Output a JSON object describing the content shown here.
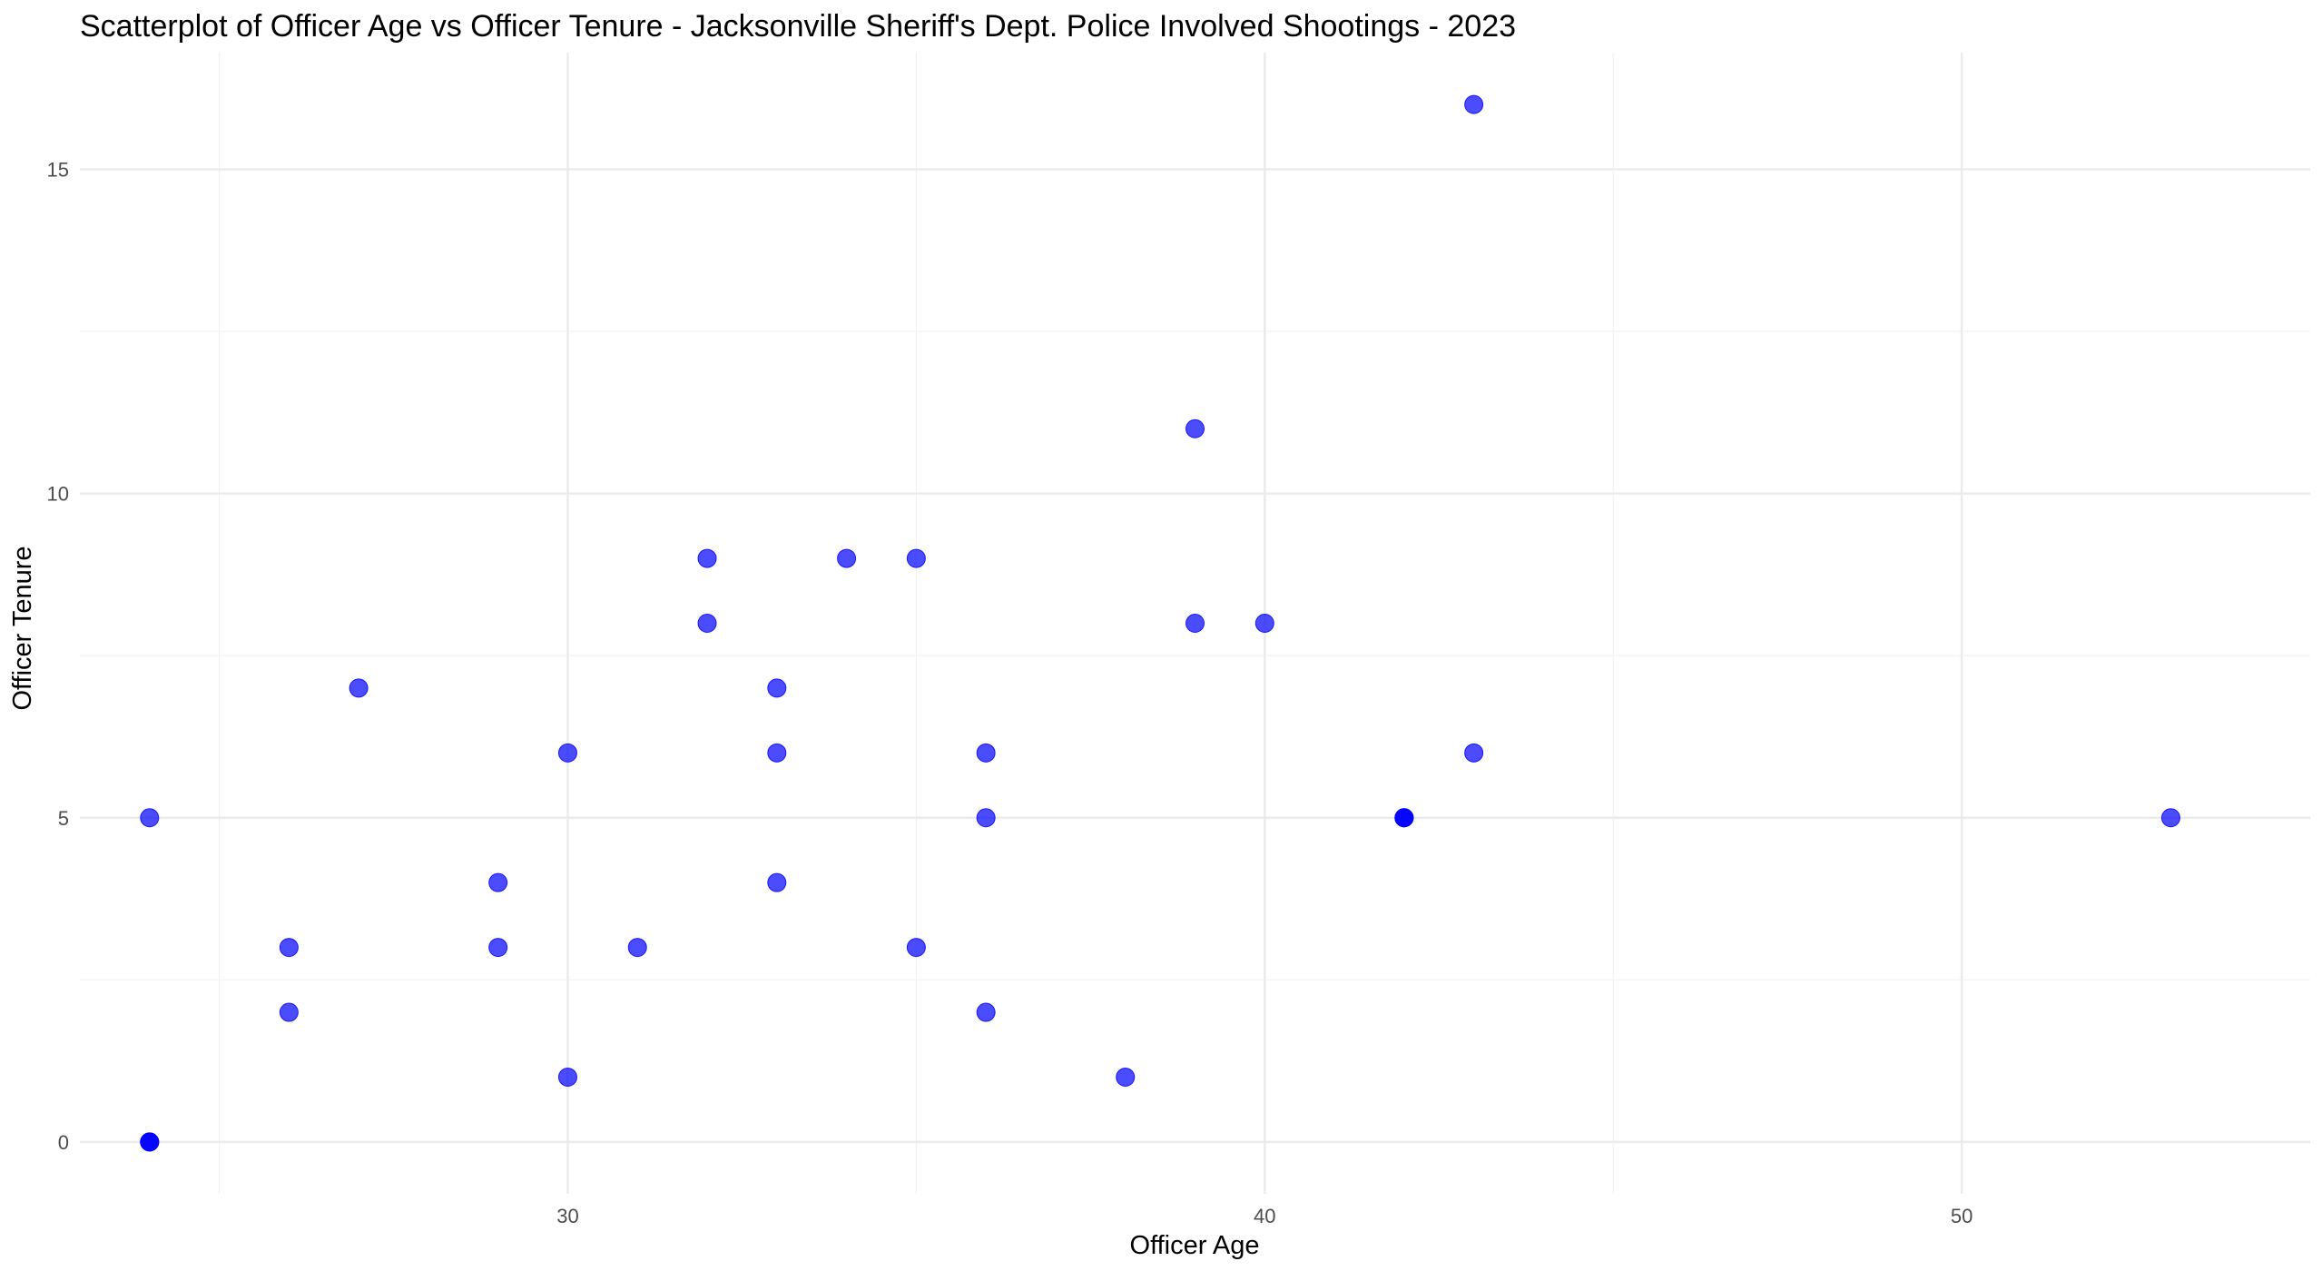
{
  "chart_data": {
    "type": "scatter",
    "title": "Scatterplot of Officer Age vs Officer Tenure - Jacksonville Sheriff's Dept. Police Involved Shootings - 2023",
    "xlabel": "Officer Age",
    "ylabel": "Officer Tenure",
    "xlim": [
      23,
      55
    ],
    "ylim": [
      -0.8,
      16.8
    ],
    "x_ticks": [
      30,
      40,
      50
    ],
    "y_ticks": [
      0,
      5,
      10,
      15
    ],
    "x_minor_ticks": [
      25,
      35,
      45
    ],
    "y_minor_ticks": [
      2.5,
      7.5,
      12.5
    ],
    "grid": true,
    "legend": "none",
    "point_color": "#0000ff",
    "point_opacity": 0.7,
    "points": [
      {
        "x": 24,
        "y": 0
      },
      {
        "x": 24,
        "y": 0
      },
      {
        "x": 24,
        "y": 0
      },
      {
        "x": 24,
        "y": 5
      },
      {
        "x": 26,
        "y": 3
      },
      {
        "x": 26,
        "y": 2
      },
      {
        "x": 27,
        "y": 7
      },
      {
        "x": 29,
        "y": 4
      },
      {
        "x": 29,
        "y": 3
      },
      {
        "x": 30,
        "y": 6
      },
      {
        "x": 30,
        "y": 1
      },
      {
        "x": 31,
        "y": 3
      },
      {
        "x": 32,
        "y": 9
      },
      {
        "x": 32,
        "y": 8
      },
      {
        "x": 33,
        "y": 7
      },
      {
        "x": 33,
        "y": 6
      },
      {
        "x": 33,
        "y": 4
      },
      {
        "x": 34,
        "y": 9
      },
      {
        "x": 35,
        "y": 9
      },
      {
        "x": 35,
        "y": 3
      },
      {
        "x": 36,
        "y": 6
      },
      {
        "x": 36,
        "y": 5
      },
      {
        "x": 36,
        "y": 2
      },
      {
        "x": 38,
        "y": 1
      },
      {
        "x": 39,
        "y": 11
      },
      {
        "x": 39,
        "y": 8
      },
      {
        "x": 40,
        "y": 8
      },
      {
        "x": 42,
        "y": 5
      },
      {
        "x": 42,
        "y": 5
      },
      {
        "x": 42,
        "y": 5
      },
      {
        "x": 43,
        "y": 16
      },
      {
        "x": 43,
        "y": 6
      },
      {
        "x": 53,
        "y": 5
      }
    ]
  }
}
